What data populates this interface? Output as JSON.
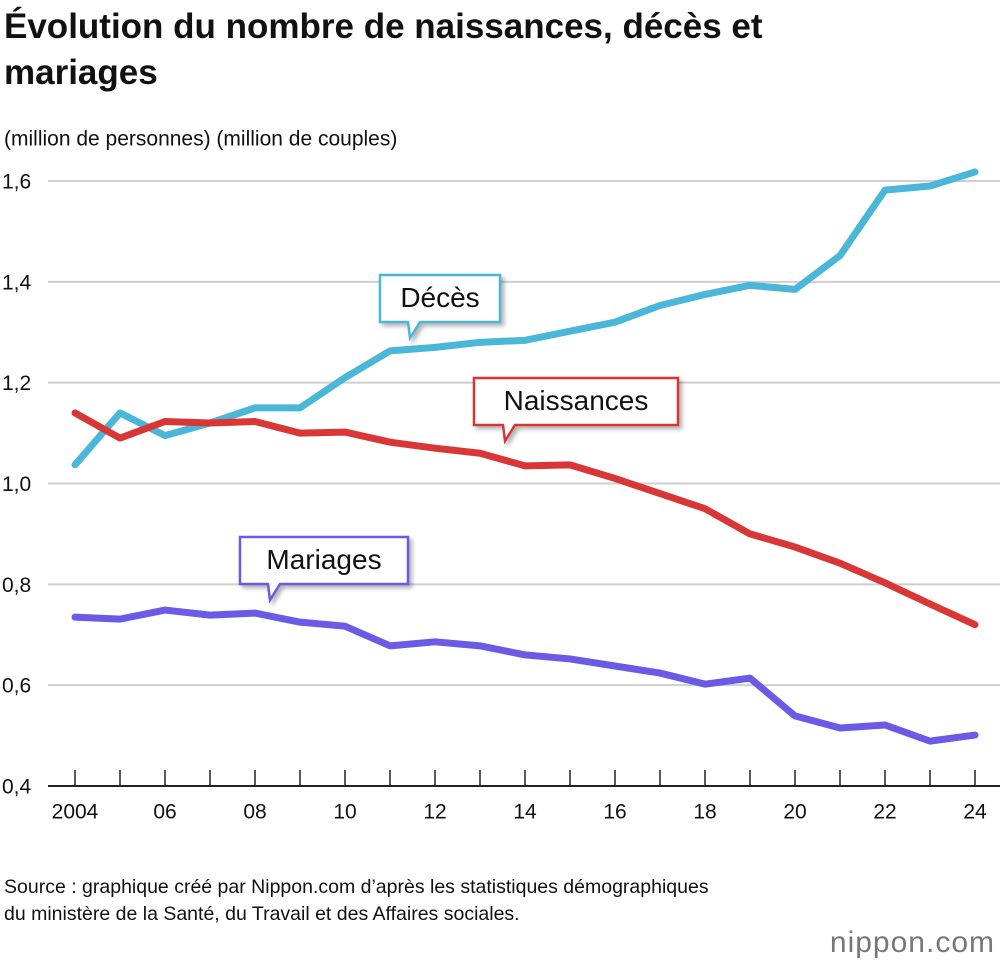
{
  "chart_data": {
    "type": "line",
    "title": "Évolution du nombre de naissances, décès et mariages",
    "y_label": "(million de personnes) (million de couples)",
    "categories": [
      "2004",
      null,
      "06",
      null,
      "08",
      null,
      "10",
      null,
      "12",
      null,
      "14",
      null,
      "16",
      null,
      "18",
      null,
      "20",
      null,
      "22",
      null,
      "24"
    ],
    "series": [
      {
        "name": "Décès",
        "color": "#4bb7d8",
        "values": [
          1.037,
          1.14,
          1.095,
          1.12,
          1.15,
          1.15,
          1.21,
          1.263,
          1.27,
          1.28,
          1.284,
          1.302,
          1.32,
          1.353,
          1.375,
          1.393,
          1.385,
          1.452,
          1.582,
          1.59,
          1.618
        ]
      },
      {
        "name": "Naissances",
        "color": "#d93636",
        "values": [
          1.14,
          1.09,
          1.123,
          1.12,
          1.123,
          1.1,
          1.102,
          1.082,
          1.07,
          1.06,
          1.035,
          1.037,
          1.01,
          0.98,
          0.95,
          0.9,
          0.874,
          0.842,
          0.803,
          0.761,
          0.72
        ]
      },
      {
        "name": "Mariages",
        "color": "#6a5ae6",
        "values": [
          0.735,
          0.731,
          0.749,
          0.739,
          0.743,
          0.725,
          0.717,
          0.678,
          0.686,
          0.678,
          0.66,
          0.652,
          0.638,
          0.624,
          0.602,
          0.614,
          0.539,
          0.515,
          0.521,
          0.489,
          0.501
        ]
      }
    ],
    "ylim": [
      0.4,
      1.6
    ],
    "yticks": [
      {
        "value": 0.4,
        "label": "0,4"
      },
      {
        "value": 0.6,
        "label": "0,6"
      },
      {
        "value": 0.8,
        "label": "0,8"
      },
      {
        "value": 1.0,
        "label": "1,0"
      },
      {
        "value": 1.2,
        "label": "1,2"
      },
      {
        "value": 1.4,
        "label": "1,4"
      },
      {
        "value": 1.6,
        "label": "1,6"
      }
    ],
    "grid": true,
    "source": "Source : graphique créé par Nippon.com d’après les statistiques démographiques du ministère de la Santé, du Travail et des Affaires sociales.",
    "logo": "nippon.com"
  }
}
